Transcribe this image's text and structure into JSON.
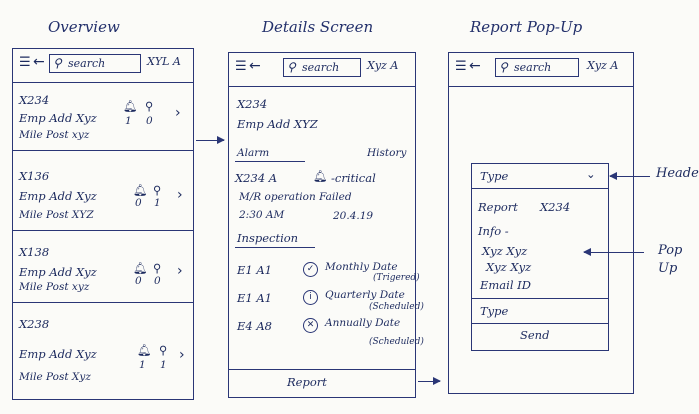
{
  "titles": {
    "overview": "Overview",
    "details": "Details Screen",
    "report_popup": "Report Pop-Up"
  },
  "overview": {
    "topbar": {
      "menu": "☰",
      "back": "←",
      "search": "search",
      "user": "XYL A"
    },
    "items": [
      {
        "id": "X234",
        "emp": "Emp Add  Xyz",
        "mile": "Mile Post  xyz",
        "bell_count": "1",
        "pin_count": "0"
      },
      {
        "id": "X136",
        "emp": "Emp Add  Xyz",
        "mile": "Mile Post   XYZ",
        "bell_count": "0",
        "pin_count": "1"
      },
      {
        "id": "X138",
        "emp": "Emp Add  Xyz",
        "mile": "Mile Post   xyz",
        "bell_count": "0",
        "pin_count": "0"
      },
      {
        "id": "X238",
        "emp": "Emp Add  Xyz",
        "mile": "Mile Post   Xyz",
        "bell_count": "1",
        "pin_count": "1"
      }
    ]
  },
  "details": {
    "topbar": {
      "menu": "☰",
      "back": "←",
      "search": "search",
      "user": "Xyz A"
    },
    "id": "X234",
    "emp": "Emp Add   XYZ",
    "tab_alarm": "Alarm",
    "tab_history": "History",
    "alarm_id": "X234 A",
    "alarm_level": "-critical",
    "alarm_msg": "M/R operation Failed",
    "alarm_time": "2:30  AM",
    "alarm_date": "20.4.19",
    "inspection_label": "Inspection",
    "inspections": [
      {
        "code": "E1 A1",
        "icon": "check",
        "freq": "Monthly Date",
        "status": "(Trigered)"
      },
      {
        "code": "E1 A1",
        "icon": "info",
        "freq": "Quarterly Date",
        "status": "(Scheduled)"
      },
      {
        "code": "E4 A8",
        "icon": "cross",
        "freq": "Annually Date",
        "status": "(Scheduled)"
      }
    ],
    "report_button": "Report"
  },
  "report_popup": {
    "topbar": {
      "menu": "☰",
      "back": "←",
      "search": "search",
      "user": "Xyz A"
    },
    "type_select": "Type",
    "report_label": "Report",
    "report_id": "X234",
    "info_label": "Info -",
    "info_line1": "Xyz  Xyz",
    "info_line2": "Xyz  Xyz",
    "email": "Email  ID",
    "type_input": "Type",
    "send_button": "Send"
  },
  "annotations": {
    "header": "Header",
    "popup": "Pop Up"
  }
}
